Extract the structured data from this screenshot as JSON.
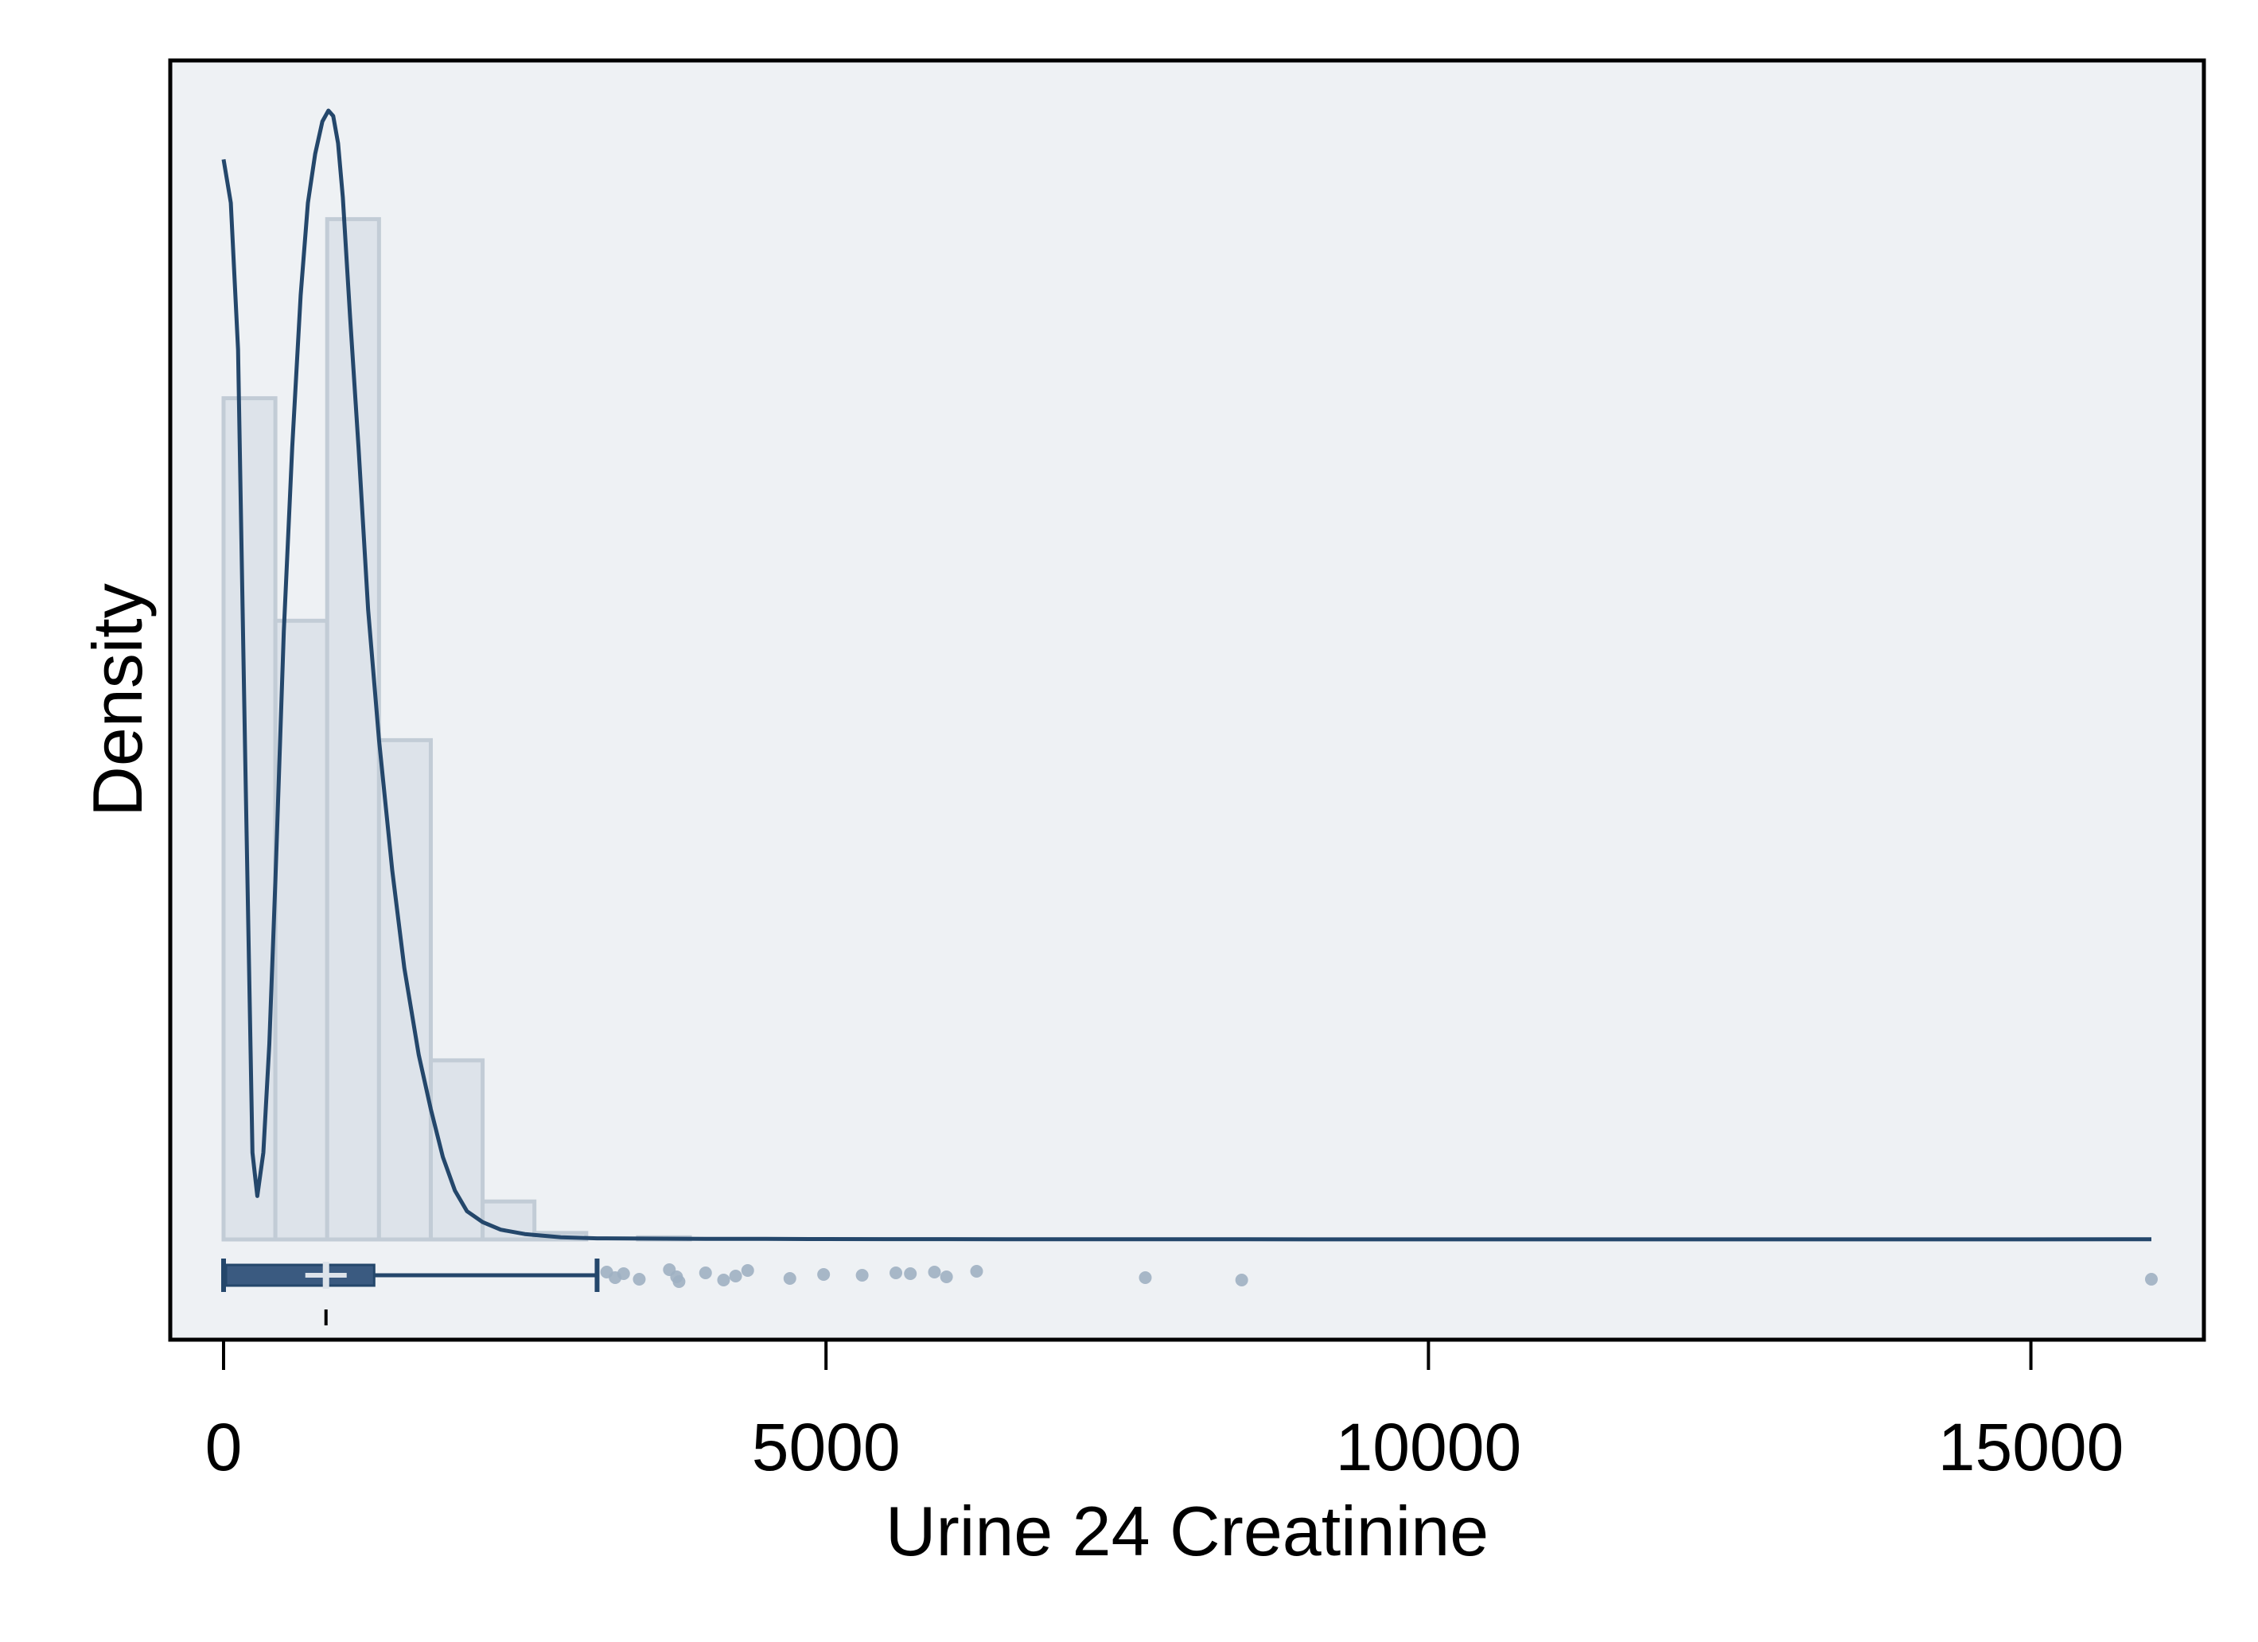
{
  "chart_data": {
    "type": "histogram",
    "xlabel": "Urine 24 Creatinine",
    "ylabel": "Density",
    "xlim": [
      -450,
      16450
    ],
    "x_ticks": [
      0,
      5000,
      10000,
      15000
    ],
    "x_tick_labels": [
      "0",
      "5000",
      "10000",
      "15000"
    ],
    "y_ticks": [],
    "grid": false,
    "legend": "none",
    "colors": {
      "plot_background": "#eef1f4",
      "bar_fill": "#dde3ea",
      "bar_stroke": "#c2ccd6",
      "line": "#24476b",
      "box": "#3a5a80",
      "median": "#dde3ea",
      "outlier": "#9fb0c2"
    },
    "histogram": {
      "bin_edges": [
        0,
        430,
        860,
        1290,
        1720,
        2150,
        2580,
        3010,
        3440,
        3870
      ],
      "density_relative": [
        0.775,
        0.57,
        0.94,
        0.46,
        0.165,
        0.035,
        0.006,
        0.0,
        0.002
      ]
    },
    "density_curve": {
      "x": [
        0,
        60,
        120,
        180,
        240,
        280,
        330,
        380,
        430,
        500,
        570,
        640,
        700,
        760,
        820,
        870,
        910,
        950,
        990,
        1050,
        1120,
        1200,
        1290,
        1400,
        1500,
        1620,
        1720,
        1820,
        1920,
        2020,
        2150,
        2300,
        2500,
        2800,
        3100,
        3500,
        4000,
        4500,
        5000,
        5500,
        6000,
        6500,
        7000,
        7500,
        8000,
        8500,
        9000,
        10000,
        11000,
        12000,
        13000,
        14000,
        15000,
        16000
      ],
      "y_relative": [
        0.995,
        0.955,
        0.82,
        0.44,
        0.08,
        0.04,
        0.08,
        0.18,
        0.33,
        0.56,
        0.73,
        0.87,
        0.955,
        1.0,
        1.03,
        1.04,
        1.035,
        1.01,
        0.96,
        0.85,
        0.73,
        0.58,
        0.46,
        0.34,
        0.25,
        0.17,
        0.12,
        0.076,
        0.045,
        0.026,
        0.016,
        0.009,
        0.005,
        0.002,
        0.001,
        0.0008,
        0.0006,
        0.0005,
        0.0004,
        0.0003,
        0.0003,
        0.0002,
        0.0002,
        0.0002,
        0.0002,
        0.0002,
        0.0001,
        0.0001,
        0.0001,
        0.0001,
        0.0001,
        0.0001,
        0.0001,
        0.0002
      ]
    },
    "boxplot": {
      "whisker_low": 0,
      "q1": 20,
      "median": 850,
      "q3": 1250,
      "whisker_high": 3100,
      "outliers": [
        3180,
        3250,
        3320,
        3450,
        3700,
        3760,
        3780,
        4000,
        4150,
        4250,
        4350,
        4700,
        4980,
        5300,
        5580,
        5700,
        5900,
        6000,
        6250,
        7650,
        8450,
        16000
      ]
    }
  }
}
